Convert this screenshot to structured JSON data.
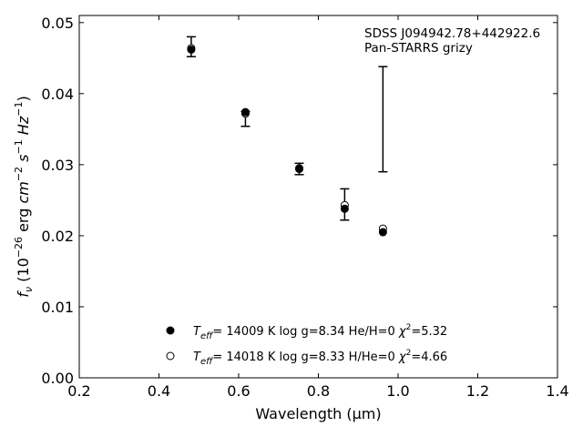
{
  "chart_data": {
    "type": "scatter",
    "title": "",
    "xlabel": "Wavelength (μm)",
    "ylabel": "f_ν (10^-26 erg cm^-2 s^-1 Hz^-1)",
    "xlim": [
      0.2,
      1.4
    ],
    "ylim": [
      0.0,
      0.051
    ],
    "xticks": [
      "0.2",
      "0.4",
      "0.6",
      "0.8",
      "1.0",
      "1.2",
      "1.4"
    ],
    "xtick_values": [
      0.2,
      0.4,
      0.6,
      0.8,
      1.0,
      1.2,
      1.4
    ],
    "yticks": [
      "0.00",
      "0.01",
      "0.02",
      "0.03",
      "0.04",
      "0.05"
    ],
    "ytick_values": [
      0.0,
      0.01,
      0.02,
      0.03,
      0.04,
      0.05
    ],
    "annotations": [
      "SDSS J094942.78+442922.6",
      "Pan-STARRS grizy"
    ],
    "observed": {
      "x": [
        0.481,
        0.617,
        0.752,
        0.866,
        0.962
      ],
      "err_low": [
        0.0452,
        0.0354,
        0.0286,
        0.0222,
        0.029
      ],
      "err_high": [
        0.048,
        0.0375,
        0.0302,
        0.0266,
        0.0438
      ]
    },
    "series": [
      {
        "name": "He/H=0",
        "legend_label": "T_eff= 14009 K  log g=8.34  He/H=0  χ²=5.32",
        "marker": "filled-circle",
        "x": [
          0.481,
          0.617,
          0.752,
          0.866,
          0.962
        ],
        "y": [
          0.0462,
          0.0374,
          0.0295,
          0.0238,
          0.0205
        ]
      },
      {
        "name": "H/He=0",
        "legend_label": "T_eff= 14018 K  log g=8.33  H/He=0  χ²=4.66",
        "marker": "open-circle",
        "x": [
          0.481,
          0.617,
          0.752,
          0.866,
          0.962
        ],
        "y": [
          0.0464,
          0.0372,
          0.0294,
          0.0243,
          0.021
        ]
      }
    ],
    "legend_position": "lower-center",
    "grid": false
  }
}
